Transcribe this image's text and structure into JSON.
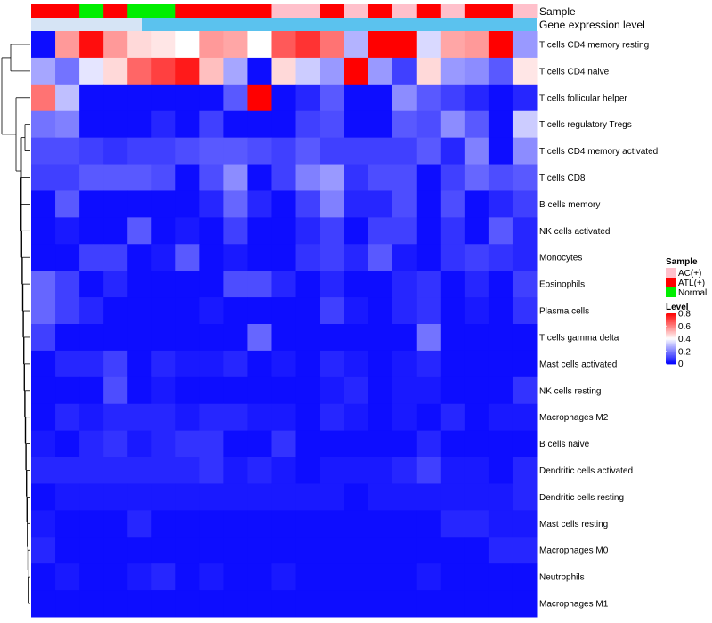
{
  "chart_data": {
    "type": "heatmap",
    "annotation_labels": [
      "Sample",
      "Gene expression level"
    ],
    "sample_groups": [
      "ATL",
      "ATL",
      "Normal",
      "ATL",
      "Normal",
      "Normal",
      "ATL",
      "ATL",
      "ATL",
      "ATL",
      "AC",
      "AC",
      "ATL",
      "AC",
      "ATL",
      "AC",
      "ATL",
      "AC",
      "ATL",
      "ATL",
      "AC"
    ],
    "rows": [
      "T cells CD4 memory resting",
      "T cells CD4 naive",
      "T cells follicular helper",
      "T cells regulatory  Tregs",
      "T cells CD4 memory activated",
      "T cells CD8",
      "B cells memory",
      "NK cells activated",
      "Monocytes",
      "Eosinophils",
      "Plasma cells",
      "T cells gamma delta",
      "Mast cells activated",
      "NK cells resting",
      "Macrophages M2",
      "B cells naive",
      "Dendritic cells activated",
      "Dendritic cells resting",
      "Mast cells resting",
      "Macrophages M0",
      "Neutrophils",
      "Macrophages M1"
    ],
    "values": [
      [
        0.02,
        0.56,
        0.78,
        0.56,
        0.46,
        0.44,
        0.4,
        0.56,
        0.54,
        0.4,
        0.66,
        0.72,
        0.62,
        0.28,
        0.8,
        0.8,
        0.34,
        0.54,
        0.56,
        0.8,
        0.24
      ],
      [
        0.26,
        0.18,
        0.36,
        0.46,
        0.64,
        0.7,
        0.76,
        0.5,
        0.26,
        0.02,
        0.46,
        0.32,
        0.24,
        0.8,
        0.24,
        0.1,
        0.46,
        0.24,
        0.22,
        0.14,
        0.44
      ],
      [
        0.62,
        0.3,
        0.02,
        0.02,
        0.02,
        0.02,
        0.02,
        0.02,
        0.14,
        0.8,
        0.02,
        0.06,
        0.14,
        0.02,
        0.02,
        0.22,
        0.14,
        0.1,
        0.06,
        0.02,
        0.06
      ],
      [
        0.18,
        0.2,
        0.02,
        0.02,
        0.02,
        0.06,
        0.02,
        0.1,
        0.02,
        0.02,
        0.02,
        0.1,
        0.12,
        0.02,
        0.02,
        0.14,
        0.12,
        0.22,
        0.14,
        0.02,
        0.32
      ],
      [
        0.12,
        0.12,
        0.1,
        0.08,
        0.1,
        0.1,
        0.12,
        0.14,
        0.14,
        0.12,
        0.1,
        0.14,
        0.1,
        0.1,
        0.1,
        0.1,
        0.14,
        0.06,
        0.2,
        0.02,
        0.22
      ],
      [
        0.1,
        0.1,
        0.14,
        0.14,
        0.14,
        0.12,
        0.02,
        0.12,
        0.22,
        0.02,
        0.1,
        0.2,
        0.24,
        0.08,
        0.12,
        0.12,
        0.02,
        0.1,
        0.16,
        0.12,
        0.14
      ],
      [
        0.02,
        0.14,
        0.02,
        0.02,
        0.02,
        0.02,
        0.02,
        0.06,
        0.16,
        0.06,
        0.02,
        0.1,
        0.2,
        0.06,
        0.06,
        0.12,
        0.02,
        0.12,
        0.02,
        0.06,
        0.1
      ],
      [
        0.02,
        0.04,
        0.02,
        0.02,
        0.14,
        0.02,
        0.04,
        0.02,
        0.1,
        0.02,
        0.02,
        0.06,
        0.1,
        0.02,
        0.1,
        0.1,
        0.02,
        0.08,
        0.02,
        0.14,
        0.06
      ],
      [
        0.02,
        0.02,
        0.1,
        0.1,
        0.02,
        0.04,
        0.14,
        0.02,
        0.04,
        0.02,
        0.02,
        0.08,
        0.1,
        0.06,
        0.14,
        0.04,
        0.02,
        0.08,
        0.1,
        0.08,
        0.06
      ],
      [
        0.16,
        0.1,
        0.02,
        0.06,
        0.02,
        0.02,
        0.02,
        0.02,
        0.12,
        0.12,
        0.06,
        0.02,
        0.06,
        0.02,
        0.02,
        0.06,
        0.08,
        0.02,
        0.06,
        0.02,
        0.1
      ],
      [
        0.16,
        0.1,
        0.06,
        0.02,
        0.02,
        0.02,
        0.02,
        0.04,
        0.02,
        0.02,
        0.02,
        0.02,
        0.1,
        0.04,
        0.02,
        0.06,
        0.08,
        0.02,
        0.04,
        0.02,
        0.08
      ],
      [
        0.1,
        0.02,
        0.02,
        0.02,
        0.02,
        0.02,
        0.02,
        0.02,
        0.02,
        0.16,
        0.02,
        0.02,
        0.02,
        0.02,
        0.02,
        0.02,
        0.18,
        0.02,
        0.02,
        0.02,
        0.02
      ],
      [
        0.02,
        0.06,
        0.06,
        0.1,
        0.02,
        0.06,
        0.04,
        0.04,
        0.06,
        0.02,
        0.04,
        0.02,
        0.06,
        0.04,
        0.02,
        0.04,
        0.06,
        0.02,
        0.02,
        0.02,
        0.02
      ],
      [
        0.02,
        0.02,
        0.02,
        0.12,
        0.02,
        0.04,
        0.02,
        0.02,
        0.02,
        0.02,
        0.02,
        0.02,
        0.04,
        0.06,
        0.02,
        0.04,
        0.04,
        0.02,
        0.02,
        0.02,
        0.08
      ],
      [
        0.02,
        0.06,
        0.04,
        0.06,
        0.06,
        0.06,
        0.04,
        0.06,
        0.06,
        0.04,
        0.04,
        0.02,
        0.06,
        0.04,
        0.02,
        0.04,
        0.02,
        0.06,
        0.02,
        0.04,
        0.04
      ],
      [
        0.04,
        0.02,
        0.06,
        0.08,
        0.04,
        0.06,
        0.08,
        0.08,
        0.02,
        0.02,
        0.08,
        0.02,
        0.02,
        0.02,
        0.02,
        0.02,
        0.06,
        0.02,
        0.02,
        0.02,
        0.02
      ],
      [
        0.06,
        0.06,
        0.06,
        0.06,
        0.06,
        0.06,
        0.06,
        0.08,
        0.04,
        0.06,
        0.04,
        0.02,
        0.04,
        0.04,
        0.04,
        0.06,
        0.1,
        0.04,
        0.04,
        0.02,
        0.06
      ],
      [
        0.02,
        0.04,
        0.04,
        0.04,
        0.04,
        0.04,
        0.04,
        0.04,
        0.04,
        0.04,
        0.04,
        0.04,
        0.04,
        0.02,
        0.04,
        0.04,
        0.04,
        0.04,
        0.04,
        0.04,
        0.06
      ],
      [
        0.04,
        0.02,
        0.02,
        0.02,
        0.06,
        0.02,
        0.02,
        0.02,
        0.02,
        0.02,
        0.02,
        0.02,
        0.02,
        0.02,
        0.02,
        0.02,
        0.02,
        0.06,
        0.06,
        0.04,
        0.04
      ],
      [
        0.06,
        0.02,
        0.02,
        0.02,
        0.02,
        0.02,
        0.02,
        0.02,
        0.02,
        0.02,
        0.02,
        0.02,
        0.02,
        0.02,
        0.02,
        0.02,
        0.02,
        0.02,
        0.02,
        0.06,
        0.06
      ],
      [
        0.02,
        0.04,
        0.02,
        0.02,
        0.04,
        0.06,
        0.02,
        0.04,
        0.02,
        0.02,
        0.04,
        0.02,
        0.02,
        0.02,
        0.02,
        0.02,
        0.04,
        0.02,
        0.02,
        0.02,
        0.02
      ],
      [
        0.02,
        0.02,
        0.02,
        0.02,
        0.02,
        0.02,
        0.02,
        0.02,
        0.02,
        0.02,
        0.02,
        0.02,
        0.02,
        0.02,
        0.02,
        0.02,
        0.02,
        0.02,
        0.02,
        0.02,
        0.02
      ]
    ],
    "color_scale": {
      "stops": [
        {
          "v": 0.0,
          "color": "#0000ff"
        },
        {
          "v": 0.4,
          "color": "#ffffff"
        },
        {
          "v": 0.8,
          "color": "#ff0000"
        }
      ]
    },
    "sample_legend": {
      "title": "Sample",
      "entries": [
        {
          "key": "AC",
          "label": "AC(+)",
          "color": "#ffc0cb"
        },
        {
          "key": "ATL",
          "label": "ATL(+)",
          "color": "#ff0000"
        },
        {
          "key": "Normal",
          "label": "Normal",
          "color": "#00ee00"
        }
      ]
    },
    "level_legend": {
      "title": "Level",
      "ticks": [
        0.8,
        0.6,
        0.4,
        0.2,
        0
      ],
      "tick_labels": [
        "0.8",
        "0.6",
        "0.4",
        "0.2",
        "0"
      ],
      "range": [
        0,
        0.8
      ]
    },
    "gene_expression_bar": {
      "fill_fraction": 0.78,
      "colors": [
        "#d6e4f5",
        "#5bc2ee"
      ]
    }
  }
}
